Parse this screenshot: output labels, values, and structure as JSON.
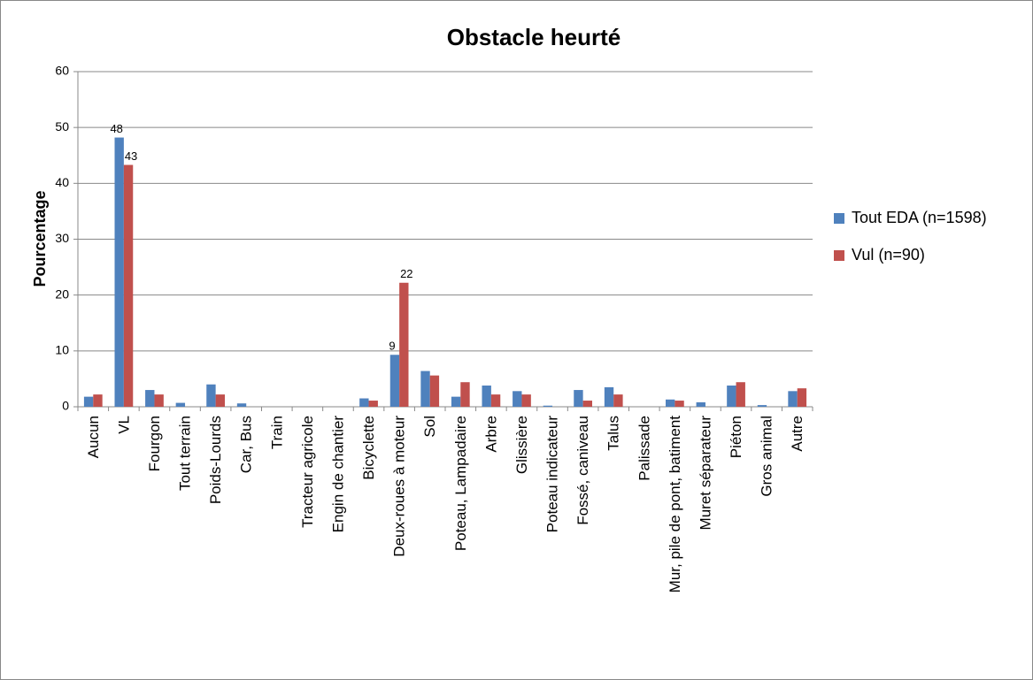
{
  "chart_data": {
    "type": "bar",
    "title": "Obstacle heurté",
    "y_label": "Pourcentage",
    "categories": [
      "Aucun",
      "VL",
      "Fourgon",
      "Tout terrain",
      "Poids-Lourds",
      "Car, Bus",
      "Train",
      "Tracteur agricole",
      "Engin de chantier",
      "Bicyclette",
      "Deux-roues à moteur",
      "Sol",
      "Poteau, Lampadaire",
      "Arbre",
      "Glissière",
      "Poteau indicateur",
      "Fossé, caniveau",
      "Talus",
      "Palissade",
      "Mur, pile de pont, batiment",
      "Muret séparateur",
      "Piéton",
      "Gros animal",
      "Autre"
    ],
    "series": [
      {
        "name": "Tout EDA (n=1598)",
        "color": "#4f81bd",
        "values": [
          1.8,
          48.2,
          3.0,
          0.7,
          4.0,
          0.6,
          0,
          0,
          0,
          1.5,
          9.3,
          6.4,
          1.8,
          3.8,
          2.8,
          0.2,
          3.0,
          3.5,
          0,
          1.3,
          0.8,
          3.8,
          0.3,
          2.8
        ],
        "value_labels": [
          null,
          "48",
          null,
          null,
          null,
          null,
          null,
          null,
          null,
          null,
          "9",
          null,
          null,
          null,
          null,
          null,
          null,
          null,
          null,
          null,
          null,
          null,
          null,
          null
        ]
      },
      {
        "name": "Vul (n=90)",
        "color": "#c0504d",
        "values": [
          2.2,
          43.3,
          2.2,
          0,
          2.2,
          0,
          0,
          0,
          0,
          1.1,
          22.2,
          5.6,
          4.4,
          2.2,
          2.2,
          0,
          1.1,
          2.2,
          0,
          1.1,
          0,
          4.4,
          0,
          3.3
        ],
        "value_labels": [
          null,
          "43",
          null,
          null,
          null,
          null,
          null,
          null,
          null,
          null,
          "22",
          null,
          null,
          null,
          null,
          null,
          null,
          null,
          null,
          null,
          null,
          null,
          null,
          null
        ]
      }
    ],
    "ylim": [
      0,
      60
    ],
    "yticks": [
      0,
      10,
      20,
      30,
      40,
      50,
      60
    ],
    "grid": true,
    "legend": "right"
  }
}
